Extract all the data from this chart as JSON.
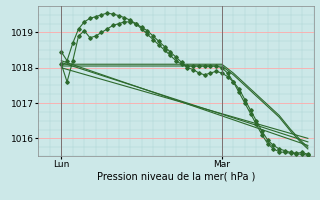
{
  "background_color": "#cce8e8",
  "grid_color_major": "#ffaaaa",
  "grid_color_minor": "#aad4d4",
  "line_color": "#2d6a2d",
  "ylim": [
    1015.5,
    1019.75
  ],
  "xlim": [
    0,
    48
  ],
  "yticks": [
    1016,
    1017,
    1018,
    1019
  ],
  "xlabel": "Pression niveau de la mer( hPa )",
  "lun_x": 4,
  "mar_x": 32,
  "series_flat1": {
    "x": [
      4,
      6,
      8,
      10,
      12,
      14,
      16,
      18,
      20,
      22,
      24,
      26,
      28,
      30,
      32,
      34,
      36,
      38,
      40,
      42,
      44,
      46,
      47
    ],
    "y": [
      1018.05,
      1018.05,
      1018.05,
      1018.05,
      1018.05,
      1018.05,
      1018.05,
      1018.05,
      1018.05,
      1018.05,
      1018.05,
      1018.05,
      1018.05,
      1018.05,
      1018.05,
      1017.8,
      1017.5,
      1017.2,
      1016.9,
      1016.6,
      1016.2,
      1015.85,
      1015.7
    ]
  },
  "series_flat2": {
    "x": [
      4,
      6,
      8,
      10,
      12,
      14,
      16,
      18,
      20,
      22,
      24,
      26,
      28,
      30,
      32,
      34,
      36,
      38,
      40,
      42,
      44,
      46,
      47
    ],
    "y": [
      1018.1,
      1018.1,
      1018.1,
      1018.1,
      1018.1,
      1018.1,
      1018.1,
      1018.1,
      1018.1,
      1018.1,
      1018.1,
      1018.1,
      1018.1,
      1018.1,
      1018.1,
      1017.85,
      1017.55,
      1017.25,
      1016.95,
      1016.65,
      1016.25,
      1015.9,
      1015.75
    ]
  },
  "series_diag1": {
    "x": [
      4,
      47
    ],
    "y": [
      1018.0,
      1016.0
    ]
  },
  "series_diag2": {
    "x": [
      4,
      47
    ],
    "y": [
      1018.15,
      1015.9
    ]
  },
  "series_diag3": {
    "x": [
      4,
      47
    ],
    "y": [
      1018.2,
      1015.8
    ]
  },
  "series_jagged": {
    "x": [
      4,
      5,
      6,
      7,
      8,
      9,
      10,
      11,
      12,
      13,
      14,
      15,
      16,
      17,
      18,
      19,
      20,
      21,
      22,
      23,
      24,
      25,
      26,
      27,
      28,
      29,
      30,
      31,
      32,
      33,
      34,
      35,
      36,
      37,
      38,
      39,
      40,
      41,
      42,
      43,
      44,
      45,
      46,
      47
    ],
    "y": [
      1018.1,
      1017.6,
      1018.2,
      1018.9,
      1019.05,
      1018.85,
      1018.9,
      1019.0,
      1019.1,
      1019.2,
      1019.25,
      1019.3,
      1019.3,
      1019.25,
      1019.15,
      1019.05,
      1018.9,
      1018.75,
      1018.6,
      1018.45,
      1018.3,
      1018.15,
      1018.0,
      1017.95,
      1017.85,
      1017.8,
      1017.85,
      1017.9,
      1017.85,
      1017.75,
      1017.6,
      1017.4,
      1017.1,
      1016.8,
      1016.5,
      1016.2,
      1015.95,
      1015.8,
      1015.7,
      1015.65,
      1015.6,
      1015.58,
      1015.6,
      1015.55
    ]
  },
  "series_upper": {
    "x": [
      4,
      5,
      6,
      7,
      8,
      9,
      10,
      11,
      12,
      13,
      14,
      15,
      16,
      17,
      18,
      19,
      20,
      21,
      22,
      23,
      24,
      25,
      26,
      27,
      28,
      29,
      30,
      31,
      32,
      33,
      34,
      35,
      36,
      37,
      38,
      39,
      40,
      41,
      42,
      43,
      44,
      45,
      46,
      47
    ],
    "y": [
      1018.45,
      1018.2,
      1018.7,
      1019.1,
      1019.3,
      1019.4,
      1019.45,
      1019.5,
      1019.55,
      1019.52,
      1019.48,
      1019.42,
      1019.35,
      1019.25,
      1019.1,
      1018.95,
      1018.8,
      1018.65,
      1018.5,
      1018.35,
      1018.2,
      1018.1,
      1018.05,
      1018.05,
      1018.05,
      1018.05,
      1018.05,
      1018.05,
      1018.0,
      1017.85,
      1017.6,
      1017.3,
      1017.0,
      1016.7,
      1016.4,
      1016.1,
      1015.85,
      1015.7,
      1015.62,
      1015.6,
      1015.58,
      1015.56,
      1015.55,
      1015.52
    ]
  }
}
